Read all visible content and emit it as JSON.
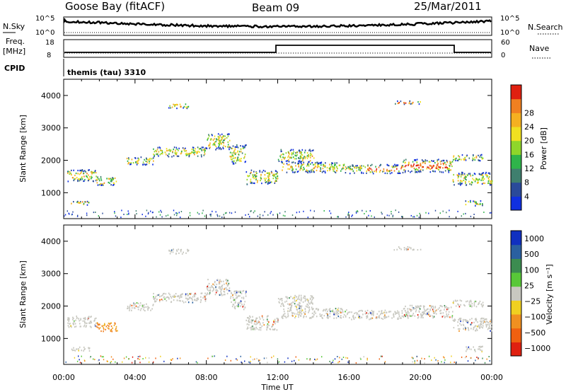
{
  "header": {
    "station": "Goose Bay (fitACF)",
    "beam": "Beam 09",
    "date": "25/Mar/2011"
  },
  "top_panels": {
    "nsky_label": "N.Sky",
    "nsky_tick_top": "10^5",
    "nsky_tick_bottom": "10^0",
    "nsearch_label": "N.Search",
    "nsearch_tick_top": "10^5",
    "nsearch_tick_bottom": "10^0",
    "freq_label": "Freq.",
    "freq_unit": "[MHz]",
    "freq_tick_top": "18",
    "freq_tick_bottom": "8",
    "nave_label": "Nave",
    "nave_tick_top": "60",
    "nave_tick_bottom": "0",
    "cpid_label": "CPID",
    "cpid_text": "themis (tau) 3310"
  },
  "chart_data": [
    {
      "type": "heatmap",
      "name": "power",
      "ylabel": "Slant Range [km]",
      "yticks": [
        "1000",
        "2000",
        "3000",
        "4000"
      ],
      "ylim": [
        200,
        4500
      ],
      "xlim": [
        0,
        24
      ],
      "colorbar_label": "Power [dB]",
      "colorbar_ticks": [
        "4",
        "8",
        "12",
        "16",
        "20",
        "24",
        "28"
      ],
      "colorscale": [
        "#1030e0",
        "#2a4a9a",
        "#3f7f6e",
        "#2fb44a",
        "#8fd62a",
        "#f0e020",
        "#f5b020",
        "#f08020",
        "#e02010"
      ]
    },
    {
      "type": "heatmap",
      "name": "velocity",
      "ylabel": "Slant Range [km]",
      "yticks": [
        "1000",
        "2000",
        "3000",
        "4000"
      ],
      "ylim": [
        200,
        4500
      ],
      "xlim": [
        0,
        24
      ],
      "xlabel": "Time UT",
      "xticks": [
        "00:00",
        "04:00",
        "08:00",
        "12:00",
        "16:00",
        "20:00",
        "00:00"
      ],
      "colorbar_label": "Velocity [m s⁻¹]",
      "colorbar_ticks": [
        "1000",
        "500",
        "100",
        "25",
        "−25",
        "−100",
        "−500",
        "−1000"
      ],
      "colorscale": [
        "#1030c0",
        "#2a60a0",
        "#3c8c50",
        "#58c838",
        "#c8c8c0",
        "#f0d020",
        "#f09020",
        "#f06010",
        "#e02010"
      ]
    }
  ]
}
